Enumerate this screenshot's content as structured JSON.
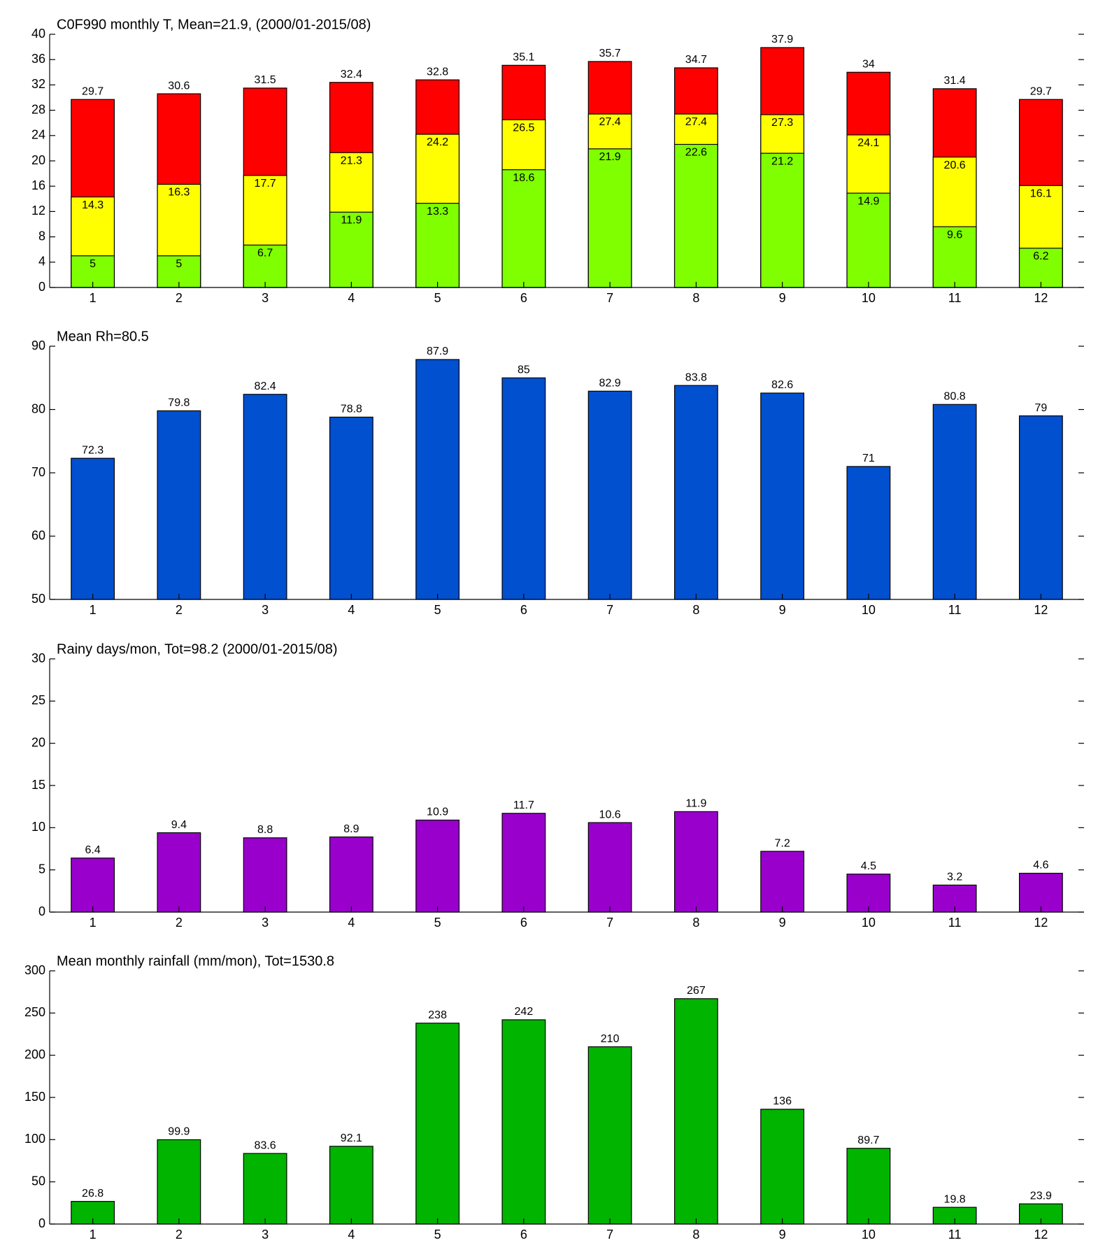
{
  "chart_data": [
    {
      "type": "bar",
      "title": "C0F990 monthly T, Mean=21.9, (2000/01-2015/08)",
      "x": [
        1,
        2,
        3,
        4,
        5,
        6,
        7,
        8,
        9,
        10,
        11,
        12
      ],
      "xlim": [
        0.5,
        12.5
      ],
      "xticks": [
        1,
        2,
        3,
        4,
        5,
        6,
        7,
        8,
        9,
        10,
        11,
        12
      ],
      "ylim": [
        0,
        40
      ],
      "yticks": [
        0,
        4,
        8,
        12,
        16,
        20,
        24,
        28,
        32,
        36,
        40
      ],
      "series": [
        {
          "color": "#ff0000",
          "values": [
            29.7,
            30.6,
            31.5,
            32.4,
            32.8,
            35.1,
            35.7,
            34.7,
            37.9,
            34,
            31.4,
            29.7
          ]
        },
        {
          "color": "#ffff00",
          "values": [
            14.3,
            16.3,
            17.7,
            21.3,
            24.2,
            26.5,
            27.4,
            27.4,
            27.3,
            24.1,
            20.6,
            16.1
          ]
        },
        {
          "color": "#80ff00",
          "values": [
            5,
            5,
            6.7,
            11.9,
            13.3,
            18.6,
            21.9,
            22.6,
            21.2,
            14.9,
            9.6,
            6.2
          ]
        }
      ]
    },
    {
      "type": "bar",
      "title": "Mean Rh=80.5",
      "x": [
        1,
        2,
        3,
        4,
        5,
        6,
        7,
        8,
        9,
        10,
        11,
        12
      ],
      "xlim": [
        0.5,
        12.5
      ],
      "xticks": [
        1,
        2,
        3,
        4,
        5,
        6,
        7,
        8,
        9,
        10,
        11,
        12
      ],
      "ylim": [
        50,
        90
      ],
      "yticks": [
        50,
        60,
        70,
        80,
        90
      ],
      "series": [
        {
          "color": "#0050d0",
          "values": [
            72.3,
            79.8,
            82.4,
            78.8,
            87.9,
            85,
            82.9,
            83.8,
            82.6,
            71,
            80.8,
            79
          ]
        }
      ]
    },
    {
      "type": "bar",
      "title": "Rainy days/mon, Tot=98.2 (2000/01-2015/08)",
      "x": [
        1,
        2,
        3,
        4,
        5,
        6,
        7,
        8,
        9,
        10,
        11,
        12
      ],
      "xlim": [
        0.5,
        12.5
      ],
      "xticks": [
        1,
        2,
        3,
        4,
        5,
        6,
        7,
        8,
        9,
        10,
        11,
        12
      ],
      "ylim": [
        0,
        30
      ],
      "yticks": [
        0,
        5,
        10,
        15,
        20,
        25,
        30
      ],
      "series": [
        {
          "color": "#9900cc",
          "values": [
            6.4,
            9.4,
            8.8,
            8.9,
            10.9,
            11.7,
            10.6,
            11.9,
            7.2,
            4.5,
            3.2,
            4.6
          ]
        }
      ]
    },
    {
      "type": "bar",
      "title": "Mean monthly rainfall (mm/mon), Tot=1530.8",
      "x": [
        1,
        2,
        3,
        4,
        5,
        6,
        7,
        8,
        9,
        10,
        11,
        12
      ],
      "xlim": [
        0.5,
        12.5
      ],
      "xticks": [
        1,
        2,
        3,
        4,
        5,
        6,
        7,
        8,
        9,
        10,
        11,
        12
      ],
      "ylim": [
        0,
        300
      ],
      "yticks": [
        0,
        50,
        100,
        150,
        200,
        250,
        300
      ],
      "series": [
        {
          "color": "#00b400",
          "values": [
            26.8,
            99.9,
            83.6,
            92.1,
            238,
            242,
            210,
            267,
            136,
            89.7,
            19.8,
            23.9
          ]
        }
      ]
    }
  ]
}
